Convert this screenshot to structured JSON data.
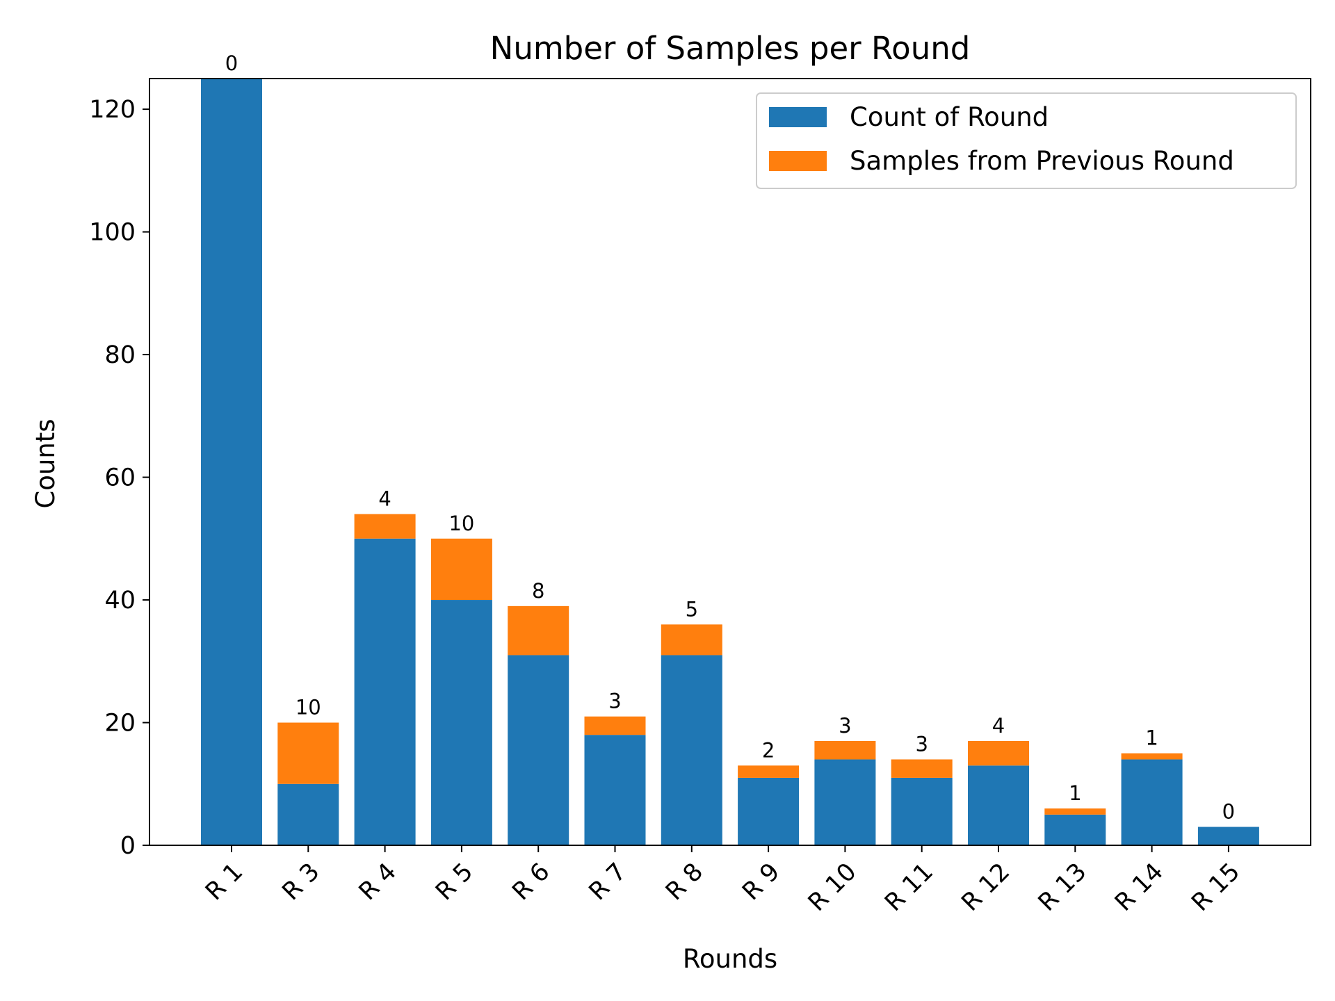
{
  "chart_data": {
    "type": "bar",
    "stacked": true,
    "title": "Number of Samples per Round",
    "xlabel": "Rounds",
    "ylabel": "Counts",
    "ylim": [
      0,
      125
    ],
    "yticks": [
      0,
      20,
      40,
      60,
      80,
      100,
      120
    ],
    "grid": false,
    "legend_position": "top-right",
    "categories": [
      "R 1",
      "R 3",
      "R 4",
      "R 5",
      "R 6",
      "R 7",
      "R 8",
      "R 9",
      "R 10",
      "R 11",
      "R 12",
      "R 13",
      "R 14",
      "R 15"
    ],
    "series": [
      {
        "name": "Count of Round",
        "color": "#1f77b4",
        "values": [
          130,
          10,
          50,
          40,
          31,
          18,
          31,
          11,
          14,
          11,
          13,
          5,
          14,
          3
        ]
      },
      {
        "name": "Samples from Previous Round",
        "color": "#ff7f0e",
        "values": [
          0,
          10,
          4,
          10,
          8,
          3,
          5,
          2,
          3,
          3,
          4,
          1,
          1,
          0
        ]
      }
    ],
    "data_labels": [
      "0",
      "10",
      "4",
      "10",
      "8",
      "3",
      "5",
      "2",
      "3",
      "3",
      "4",
      "1",
      "1",
      "0"
    ]
  }
}
